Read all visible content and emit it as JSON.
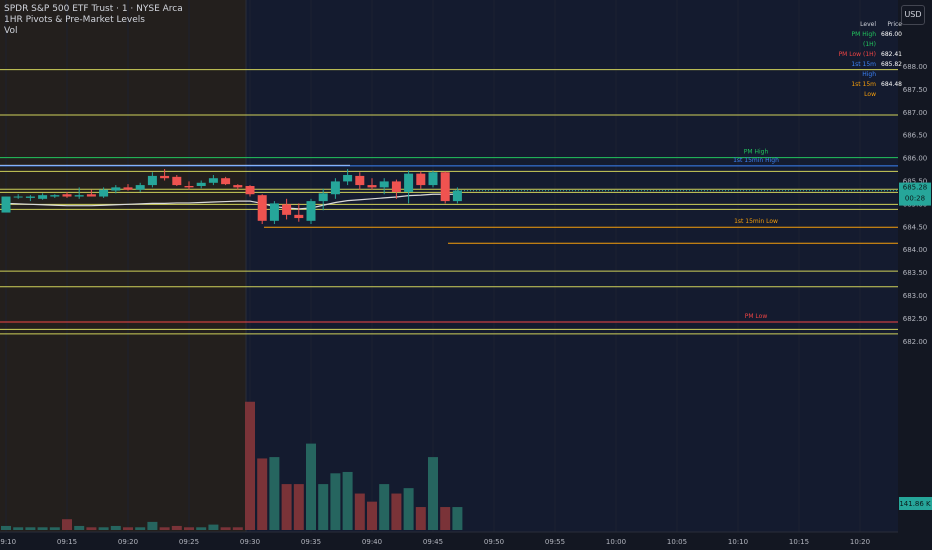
{
  "legend": {
    "title": "SPDR S&P 500 ETF Trust · 1 · NYSE Arca",
    "indicator": "1HR Pivots & Pre-Market Levels",
    "volume": "Vol"
  },
  "currency_button": "USD",
  "levels_table": {
    "headers": [
      "Level",
      "Price"
    ],
    "rows": [
      {
        "name": "PM High (1H)",
        "price": "686.00",
        "color": "#22c55e"
      },
      {
        "name": "PM Low (1H)",
        "price": "682.41",
        "color": "#ef4444"
      },
      {
        "name": "1st 15m High",
        "price": "685.82",
        "color": "#3b82f6"
      },
      {
        "name": "1st 15m Low",
        "price": "684.48",
        "color": "#f59e0b"
      }
    ]
  },
  "chart_data": {
    "type": "candlestick",
    "x_ticks": [
      "09:10",
      "09:15",
      "09:20",
      "09:25",
      "09:30",
      "09:35",
      "09:40",
      "09:45",
      "09:50",
      "09:55",
      "10:00",
      "10:05",
      "10:10",
      "10:15",
      "10:20"
    ],
    "y_ticks": [
      "688.00",
      "687.50",
      "687.00",
      "686.50",
      "686.00",
      "685.50",
      "685.00",
      "684.50",
      "684.00",
      "683.50",
      "683.00",
      "682.50",
      "682.00"
    ],
    "ylim": [
      681.9,
      688.2
    ],
    "candles": [
      {
        "t": "09:10",
        "o": 684.8,
        "h": 685.15,
        "l": 684.8,
        "c": 685.15
      },
      {
        "t": "09:11",
        "o": 685.15,
        "h": 685.2,
        "l": 685.1,
        "c": 685.15
      },
      {
        "t": "09:12",
        "o": 685.12,
        "h": 685.18,
        "l": 685.05,
        "c": 685.15
      },
      {
        "t": "09:13",
        "o": 685.1,
        "h": 685.22,
        "l": 685.08,
        "c": 685.18
      },
      {
        "t": "09:14",
        "o": 685.15,
        "h": 685.2,
        "l": 685.12,
        "c": 685.18
      },
      {
        "t": "09:15",
        "o": 685.2,
        "h": 685.25,
        "l": 685.12,
        "c": 685.15
      },
      {
        "t": "09:16",
        "o": 685.15,
        "h": 685.35,
        "l": 685.1,
        "c": 685.18
      },
      {
        "t": "09:17",
        "o": 685.2,
        "h": 685.3,
        "l": 685.15,
        "c": 685.15
      },
      {
        "t": "09:18",
        "o": 685.15,
        "h": 685.35,
        "l": 685.12,
        "c": 685.3
      },
      {
        "t": "09:19",
        "o": 685.28,
        "h": 685.4,
        "l": 685.22,
        "c": 685.35
      },
      {
        "t": "09:20",
        "o": 685.35,
        "h": 685.42,
        "l": 685.28,
        "c": 685.3
      },
      {
        "t": "09:21",
        "o": 685.3,
        "h": 685.45,
        "l": 685.25,
        "c": 685.4
      },
      {
        "t": "09:22",
        "o": 685.4,
        "h": 685.68,
        "l": 685.35,
        "c": 685.6
      },
      {
        "t": "09:23",
        "o": 685.6,
        "h": 685.75,
        "l": 685.5,
        "c": 685.55
      },
      {
        "t": "09:24",
        "o": 685.58,
        "h": 685.62,
        "l": 685.38,
        "c": 685.4
      },
      {
        "t": "09:25",
        "o": 685.38,
        "h": 685.48,
        "l": 685.3,
        "c": 685.35
      },
      {
        "t": "09:26",
        "o": 685.38,
        "h": 685.5,
        "l": 685.33,
        "c": 685.45
      },
      {
        "t": "09:27",
        "o": 685.45,
        "h": 685.62,
        "l": 685.4,
        "c": 685.55
      },
      {
        "t": "09:28",
        "o": 685.55,
        "h": 685.58,
        "l": 685.4,
        "c": 685.42
      },
      {
        "t": "09:29",
        "o": 685.4,
        "h": 685.42,
        "l": 685.3,
        "c": 685.35
      },
      {
        "t": "09:30",
        "o": 685.38,
        "h": 685.4,
        "l": 685.15,
        "c": 685.2
      },
      {
        "t": "09:31",
        "o": 685.18,
        "h": 685.2,
        "l": 684.55,
        "c": 684.62
      },
      {
        "t": "09:32",
        "o": 684.62,
        "h": 685.05,
        "l": 684.55,
        "c": 685.0
      },
      {
        "t": "09:33",
        "o": 684.98,
        "h": 685.1,
        "l": 684.65,
        "c": 684.75
      },
      {
        "t": "09:34",
        "o": 684.75,
        "h": 685.0,
        "l": 684.6,
        "c": 684.68
      },
      {
        "t": "09:35",
        "o": 684.62,
        "h": 685.1,
        "l": 684.55,
        "c": 685.05
      },
      {
        "t": "09:36",
        "o": 685.05,
        "h": 685.32,
        "l": 684.85,
        "c": 685.22
      },
      {
        "t": "09:37",
        "o": 685.2,
        "h": 685.55,
        "l": 685.1,
        "c": 685.48
      },
      {
        "t": "09:38",
        "o": 685.48,
        "h": 685.75,
        "l": 685.4,
        "c": 685.62
      },
      {
        "t": "09:39",
        "o": 685.6,
        "h": 685.68,
        "l": 685.3,
        "c": 685.4
      },
      {
        "t": "09:40",
        "o": 685.4,
        "h": 685.55,
        "l": 685.3,
        "c": 685.35
      },
      {
        "t": "09:41",
        "o": 685.35,
        "h": 685.55,
        "l": 685.2,
        "c": 685.48
      },
      {
        "t": "09:42",
        "o": 685.48,
        "h": 685.52,
        "l": 685.1,
        "c": 685.25
      },
      {
        "t": "09:43",
        "o": 685.25,
        "h": 685.72,
        "l": 685.0,
        "c": 685.65
      },
      {
        "t": "09:44",
        "o": 685.65,
        "h": 685.7,
        "l": 685.32,
        "c": 685.4
      },
      {
        "t": "09:45",
        "o": 685.4,
        "h": 685.72,
        "l": 685.35,
        "c": 685.68
      },
      {
        "t": "09:46",
        "o": 685.68,
        "h": 685.7,
        "l": 685.0,
        "c": 685.05
      },
      {
        "t": "09:47",
        "o": 685.05,
        "h": 685.35,
        "l": 685.0,
        "c": 685.28
      }
    ],
    "volume": [
      3,
      2,
      2,
      2,
      2,
      8,
      3,
      2,
      2,
      3,
      2,
      2,
      6,
      2,
      3,
      2,
      2,
      4,
      2,
      2,
      95,
      53,
      54,
      34,
      34,
      64,
      34,
      42,
      43,
      27,
      21,
      34,
      27,
      31,
      17,
      54,
      17,
      17
    ],
    "vwap": [
      685.0,
      684.99,
      684.98,
      684.97,
      684.96,
      684.95,
      684.95,
      684.95,
      684.96,
      684.97,
      684.98,
      684.99,
      685.0,
      685.0,
      685.01,
      685.01,
      685.02,
      685.03,
      685.04,
      685.05,
      685.05,
      685.0,
      684.93,
      684.9,
      684.88,
      684.9,
      684.96,
      685.02,
      685.06,
      685.08,
      685.1,
      685.12,
      685.14,
      685.17,
      685.18,
      685.2,
      685.2,
      685.2
    ],
    "horizontal_levels": [
      {
        "price": 687.92,
        "color": "#cfd15a"
      },
      {
        "price": 686.93,
        "color": "#cfd15a"
      },
      {
        "price": 686.0,
        "color": "#22c55e",
        "label": "PM High"
      },
      {
        "price": 685.83,
        "color": "#ffffff"
      },
      {
        "price": 685.82,
        "color": "#3b82f6",
        "label": "1st 15min High"
      },
      {
        "price": 685.7,
        "color": "#cfd15a"
      },
      {
        "price": 685.31,
        "color": "#cfd15a"
      },
      {
        "price": 685.24,
        "color": "#cfd15a"
      },
      {
        "price": 684.98,
        "color": "#cfd15a"
      },
      {
        "price": 684.87,
        "color": "#cfd15a"
      },
      {
        "price": 684.48,
        "color": "#f59e0b",
        "label": "1st 15min Low"
      },
      {
        "price": 683.52,
        "color": "#cfd15a"
      },
      {
        "price": 683.18,
        "color": "#cfd15a"
      },
      {
        "price": 682.41,
        "color": "#ef4444",
        "label": "PM Low"
      },
      {
        "price": 682.25,
        "color": "#cfd15a"
      },
      {
        "price": 682.15,
        "color": "#cfd15a"
      }
    ],
    "last_price": "685.28",
    "countdown": "00:28",
    "last_volume": "141.86 K"
  }
}
